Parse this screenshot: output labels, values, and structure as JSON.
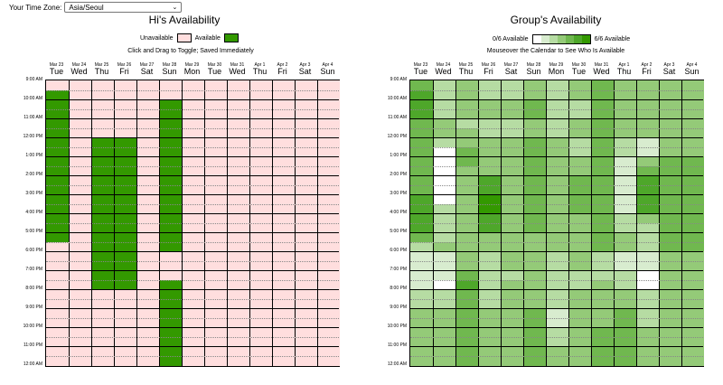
{
  "timezone": {
    "label": "Your Time Zone:",
    "value": "Asia/Seoul"
  },
  "left": {
    "title": "Hi's Availability",
    "legend_unavailable": "Unavailable",
    "legend_available": "Available",
    "note": "Click and Drag to Toggle; Saved Immediately"
  },
  "right": {
    "title": "Group's Availability",
    "legend_min": "0/6 Available",
    "legend_max": "6/6 Available",
    "note": "Mouseover the Calendar to See Who Is Available"
  },
  "colors": {
    "unavailable": "#ffdede",
    "available": "#339900",
    "group_scale": [
      "#ffffff",
      "#d8eccf",
      "#b6dca3",
      "#94ca78",
      "#70b84f",
      "#4ea72a",
      "#339900"
    ]
  },
  "days": [
    {
      "date": "Mar 23",
      "dow": "Tue"
    },
    {
      "date": "Mar 24",
      "dow": "Wed"
    },
    {
      "date": "Mar 25",
      "dow": "Thu"
    },
    {
      "date": "Mar 26",
      "dow": "Fri"
    },
    {
      "date": "Mar 27",
      "dow": "Sat"
    },
    {
      "date": "Mar 28",
      "dow": "Sun"
    },
    {
      "date": "Mar 29",
      "dow": "Mon"
    },
    {
      "date": "Mar 30",
      "dow": "Tue"
    },
    {
      "date": "Mar 31",
      "dow": "Wed"
    },
    {
      "date": "Apr 1",
      "dow": "Thu"
    },
    {
      "date": "Apr 2",
      "dow": "Fri"
    },
    {
      "date": "Apr 3",
      "dow": "Sat"
    },
    {
      "date": "Apr 4",
      "dow": "Sun"
    }
  ],
  "times": [
    "9:00 AM",
    "10:00 AM",
    "11:00 AM",
    "12:00 PM",
    "1:00 PM",
    "2:00 PM",
    "3:00 PM",
    "4:00 PM",
    "5:00 PM",
    "6:00 PM",
    "7:00 PM",
    "8:00 PM",
    "9:00 PM",
    "10:00 PM",
    "11:00 PM",
    "12:00 AM"
  ],
  "my_availability": [
    [
      0,
      1,
      1,
      1,
      1,
      1,
      1,
      1,
      1,
      1,
      1,
      1,
      1,
      1,
      1,
      1,
      1,
      0,
      0,
      0,
      0,
      0,
      0,
      0,
      0,
      0,
      0,
      0,
      0,
      0
    ],
    [
      0,
      0,
      0,
      0,
      0,
      0,
      0,
      0,
      0,
      0,
      0,
      0,
      0,
      0,
      0,
      0,
      0,
      0,
      0,
      0,
      0,
      0,
      0,
      0,
      0,
      0,
      0,
      0,
      0,
      0
    ],
    [
      0,
      0,
      0,
      0,
      0,
      0,
      1,
      1,
      1,
      1,
      1,
      1,
      1,
      1,
      1,
      1,
      1,
      1,
      1,
      1,
      1,
      1,
      0,
      0,
      0,
      0,
      0,
      0,
      0,
      0
    ],
    [
      0,
      0,
      0,
      0,
      0,
      0,
      1,
      1,
      1,
      1,
      1,
      1,
      1,
      1,
      1,
      1,
      1,
      1,
      1,
      1,
      1,
      1,
      0,
      0,
      0,
      0,
      0,
      0,
      0,
      0
    ],
    [
      0,
      0,
      0,
      0,
      0,
      0,
      0,
      0,
      0,
      0,
      0,
      0,
      0,
      0,
      0,
      0,
      0,
      0,
      0,
      0,
      0,
      0,
      0,
      0,
      0,
      0,
      0,
      0,
      0,
      0
    ],
    [
      0,
      0,
      1,
      1,
      1,
      1,
      1,
      1,
      1,
      1,
      1,
      1,
      1,
      1,
      1,
      1,
      1,
      1,
      0,
      0,
      0,
      1,
      1,
      1,
      1,
      1,
      1,
      1,
      1,
      1
    ],
    [
      0,
      0,
      0,
      0,
      0,
      0,
      0,
      0,
      0,
      0,
      0,
      0,
      0,
      0,
      0,
      0,
      0,
      0,
      0,
      0,
      0,
      0,
      0,
      0,
      0,
      0,
      0,
      0,
      0,
      0
    ],
    [
      0,
      0,
      0,
      0,
      0,
      0,
      0,
      0,
      0,
      0,
      0,
      0,
      0,
      0,
      0,
      0,
      0,
      0,
      0,
      0,
      0,
      0,
      0,
      0,
      0,
      0,
      0,
      0,
      0,
      0
    ],
    [
      0,
      0,
      0,
      0,
      0,
      0,
      0,
      0,
      0,
      0,
      0,
      0,
      0,
      0,
      0,
      0,
      0,
      0,
      0,
      0,
      0,
      0,
      0,
      0,
      0,
      0,
      0,
      0,
      0,
      0
    ],
    [
      0,
      0,
      0,
      0,
      0,
      0,
      0,
      0,
      0,
      0,
      0,
      0,
      0,
      0,
      0,
      0,
      0,
      0,
      0,
      0,
      0,
      0,
      0,
      0,
      0,
      0,
      0,
      0,
      0,
      0
    ],
    [
      0,
      0,
      0,
      0,
      0,
      0,
      0,
      0,
      0,
      0,
      0,
      0,
      0,
      0,
      0,
      0,
      0,
      0,
      0,
      0,
      0,
      0,
      0,
      0,
      0,
      0,
      0,
      0,
      0,
      0
    ],
    [
      0,
      0,
      0,
      0,
      0,
      0,
      0,
      0,
      0,
      0,
      0,
      0,
      0,
      0,
      0,
      0,
      0,
      0,
      0,
      0,
      0,
      0,
      0,
      0,
      0,
      0,
      0,
      0,
      0,
      0
    ],
    [
      0,
      0,
      0,
      0,
      0,
      0,
      0,
      0,
      0,
      0,
      0,
      0,
      0,
      0,
      0,
      0,
      0,
      0,
      0,
      0,
      0,
      0,
      0,
      0,
      0,
      0,
      0,
      0,
      0,
      0
    ]
  ],
  "group_availability": [
    [
      4,
      5,
      5,
      5,
      4,
      4,
      4,
      4,
      4,
      4,
      4,
      4,
      5,
      5,
      5,
      5,
      4,
      2,
      1,
      1,
      1,
      1,
      2,
      2,
      3,
      3,
      3,
      3,
      3,
      3
    ],
    [
      2,
      2,
      2,
      2,
      3,
      3,
      2,
      0,
      0,
      0,
      0,
      0,
      0,
      2,
      2,
      2,
      2,
      3,
      1,
      1,
      1,
      0,
      2,
      2,
      3,
      3,
      3,
      3,
      3,
      3
    ],
    [
      3,
      3,
      3,
      3,
      2,
      3,
      3,
      4,
      4,
      3,
      3,
      3,
      3,
      3,
      3,
      3,
      3,
      3,
      3,
      3,
      4,
      5,
      4,
      4,
      4,
      4,
      4,
      4,
      4,
      4
    ],
    [
      2,
      2,
      3,
      3,
      2,
      2,
      3,
      3,
      3,
      3,
      5,
      5,
      6,
      6,
      5,
      5,
      3,
      3,
      2,
      2,
      2,
      2,
      2,
      2,
      3,
      3,
      3,
      3,
      3,
      3
    ],
    [
      2,
      2,
      3,
      3,
      2,
      2,
      3,
      3,
      3,
      3,
      3,
      3,
      3,
      3,
      3,
      3,
      3,
      3,
      3,
      3,
      2,
      3,
      3,
      3,
      3,
      3,
      3,
      3,
      3,
      3
    ],
    [
      3,
      3,
      4,
      4,
      3,
      3,
      4,
      4,
      4,
      4,
      4,
      4,
      4,
      4,
      4,
      4,
      3,
      3,
      3,
      3,
      3,
      3,
      3,
      3,
      4,
      4,
      4,
      4,
      4,
      4
    ],
    [
      2,
      2,
      2,
      2,
      2,
      2,
      3,
      3,
      3,
      3,
      3,
      3,
      3,
      3,
      3,
      3,
      3,
      3,
      2,
      2,
      2,
      2,
      2,
      2,
      1,
      1,
      2,
      2,
      3,
      3
    ],
    [
      3,
      3,
      2,
      2,
      3,
      3,
      2,
      2,
      3,
      3,
      4,
      4,
      4,
      4,
      3,
      3,
      3,
      3,
      3,
      3,
      2,
      2,
      3,
      3,
      3,
      3,
      3,
      3,
      3,
      3
    ],
    [
      4,
      4,
      4,
      4,
      4,
      4,
      4,
      4,
      4,
      4,
      4,
      4,
      4,
      4,
      4,
      4,
      4,
      4,
      2,
      2,
      2,
      3,
      3,
      3,
      3,
      3,
      4,
      4,
      4,
      4
    ],
    [
      3,
      3,
      3,
      3,
      3,
      3,
      2,
      2,
      1,
      1,
      1,
      1,
      1,
      1,
      2,
      2,
      3,
      3,
      1,
      1,
      2,
      2,
      3,
      3,
      4,
      4,
      4,
      4,
      4,
      4
    ],
    [
      3,
      3,
      3,
      3,
      3,
      3,
      1,
      1,
      3,
      4,
      5,
      5,
      5,
      5,
      3,
      2,
      2,
      2,
      1,
      1,
      0,
      0,
      2,
      2,
      2,
      2,
      3,
      3,
      3,
      3
    ],
    [
      3,
      3,
      3,
      3,
      3,
      3,
      3,
      3,
      4,
      4,
      4,
      4,
      4,
      4,
      4,
      4,
      4,
      4,
      3,
      3,
      3,
      3,
      3,
      3,
      3,
      3,
      3,
      3,
      3,
      3
    ],
    [
      3,
      3,
      3,
      3,
      3,
      3,
      3,
      3,
      4,
      4,
      4,
      4,
      4,
      4,
      4,
      4,
      4,
      4,
      3,
      3,
      3,
      3,
      3,
      3,
      3,
      3,
      3,
      3,
      3,
      3
    ]
  ]
}
